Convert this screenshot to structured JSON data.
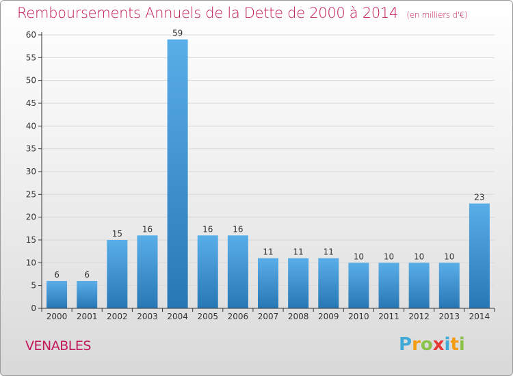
{
  "title": "Remboursements Annuels de la Dette de 2000 à 2014",
  "unit_note": "(en milliers d'€)",
  "commune": "VENABLES",
  "logo": {
    "text": "Proxiti",
    "letters": [
      "P",
      "r",
      "o",
      "x",
      "i",
      "t",
      "i"
    ],
    "colors": [
      "#3fa9d8",
      "#f39c12",
      "#8bc34a",
      "#e53935",
      "#3fa9d8",
      "#f39c12",
      "#8bc34a"
    ]
  },
  "colors": {
    "bar_top": "#5aaee8",
    "bar_bottom": "#2777b5",
    "grid": "#d8d8d8",
    "axis": "#333333",
    "title": "#c2185b"
  },
  "chart_data": {
    "type": "bar",
    "categories": [
      "2000",
      "2001",
      "2002",
      "2003",
      "2004",
      "2005",
      "2006",
      "2007",
      "2008",
      "2009",
      "2010",
      "2011",
      "2012",
      "2013",
      "2014"
    ],
    "values": [
      6,
      6,
      15,
      16,
      59,
      16,
      16,
      11,
      11,
      11,
      10,
      10,
      10,
      10,
      23
    ],
    "data_labels": [
      "6",
      "6",
      "15",
      "16",
      "59",
      "16",
      "16",
      "11",
      "11",
      "11",
      "10",
      "10",
      "10",
      "10",
      "23"
    ],
    "y_ticks": [
      0,
      5,
      10,
      15,
      20,
      25,
      30,
      35,
      40,
      45,
      50,
      55,
      60
    ],
    "ylim": [
      0,
      60
    ],
    "grid": true,
    "legend": "none"
  }
}
